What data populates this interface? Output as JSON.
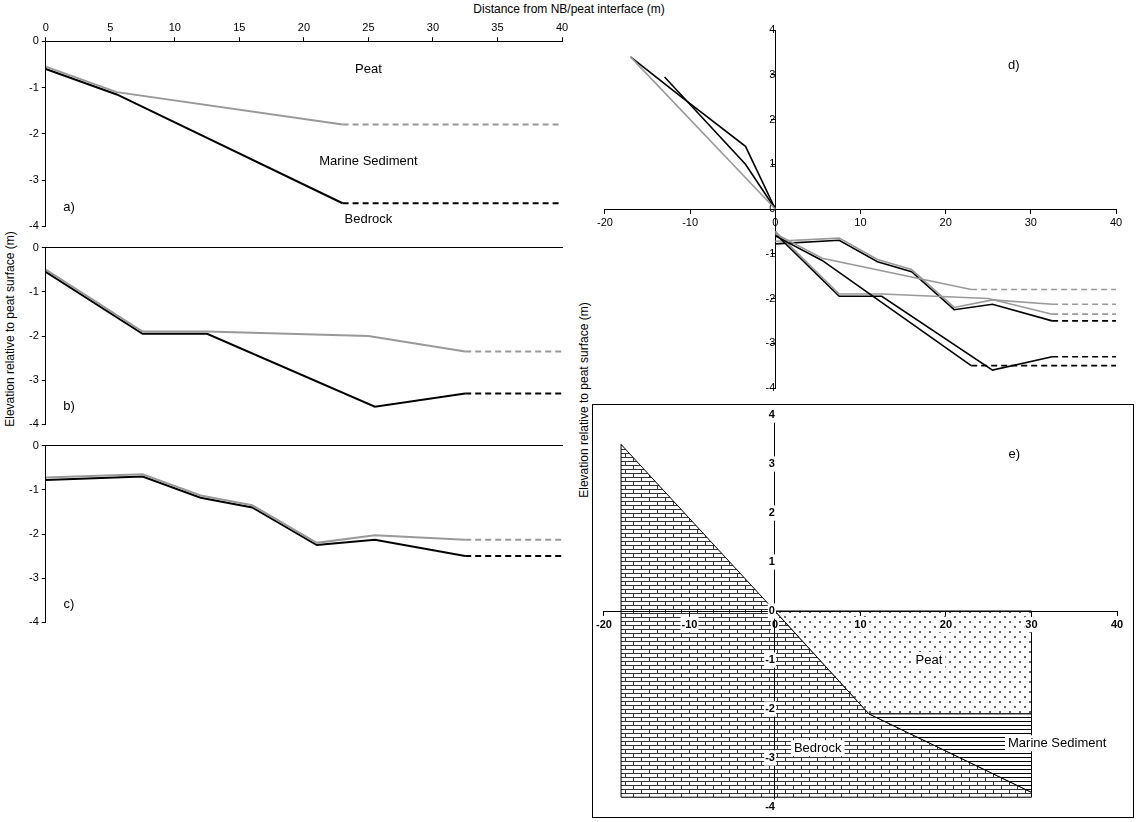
{
  "x_label": "Distance from NB/peat interface (m)",
  "y_label_left": "Elevation relative to peat surface (m)",
  "y_label_right": "Elevation relative to peat surface (m)",
  "chart_data": [
    {
      "type": "line",
      "xlim": [
        0,
        40
      ],
      "xticks": [
        0,
        5,
        10,
        15,
        20,
        25,
        30,
        35,
        40
      ],
      "ylim": [
        -4,
        0
      ],
      "yticks": [
        0,
        -1,
        -2,
        -3,
        -4
      ],
      "grid": false,
      "series": [
        {
          "color": "#999999",
          "x": [
            0,
            5.5,
            23
          ],
          "values": [
            -0.55,
            -1.1,
            -1.8
          ]
        },
        {
          "color": "#999999",
          "line_style": "dashed",
          "x": [
            23,
            40
          ],
          "values": [
            -1.8,
            -1.8
          ]
        },
        {
          "color": "#000000",
          "x": [
            0,
            5.5,
            23
          ],
          "values": [
            -0.6,
            -1.15,
            -3.5
          ]
        },
        {
          "color": "#000000",
          "line_style": "dashed",
          "x": [
            23,
            40
          ],
          "values": [
            -3.5,
            -3.5
          ]
        }
      ],
      "annotations": [
        {
          "text": "Peat",
          "x": 25,
          "y": -0.6
        },
        {
          "text": "Marine Sediment",
          "x": 25,
          "y": -2.6
        },
        {
          "text": "Bedrock",
          "x": 25,
          "y": -3.85
        },
        {
          "text": "a)",
          "x": 1.8,
          "y": -3.6
        }
      ]
    },
    {
      "type": "line",
      "xlim": [
        0,
        40
      ],
      "ylim": [
        -4,
        0
      ],
      "yticks": [
        0,
        -1,
        -2,
        -3,
        -4
      ],
      "grid": false,
      "tick_labels": "y",
      "series": [
        {
          "color": "#999999",
          "x": [
            0,
            7.5,
            12.5,
            25,
            32.5
          ],
          "values": [
            -0.5,
            -1.9,
            -1.9,
            -2.0,
            -2.35
          ]
        },
        {
          "color": "#999999",
          "line_style": "dashed",
          "x": [
            32.5,
            40
          ],
          "values": [
            -2.35,
            -2.35
          ]
        },
        {
          "color": "#000000",
          "x": [
            0,
            7.5,
            12.5,
            25.5,
            32.5
          ],
          "values": [
            -0.55,
            -1.95,
            -1.95,
            -3.6,
            -3.3
          ]
        },
        {
          "color": "#000000",
          "line_style": "dashed",
          "x": [
            32.5,
            40
          ],
          "values": [
            -3.3,
            -3.3
          ]
        }
      ],
      "annotations": [
        {
          "text": "b)",
          "x": 1.8,
          "y": -3.6
        }
      ]
    },
    {
      "type": "line",
      "xlim": [
        0,
        40
      ],
      "ylim": [
        -4,
        0
      ],
      "yticks": [
        0,
        -1,
        -2,
        -3,
        -4
      ],
      "grid": false,
      "tick_labels": "y",
      "series": [
        {
          "color": "#999999",
          "x": [
            0,
            7.5,
            12,
            16,
            21,
            25.5,
            32.5
          ],
          "values": [
            -0.72,
            -0.65,
            -1.13,
            -1.35,
            -2.2,
            -2.03,
            -2.13
          ]
        },
        {
          "color": "#999999",
          "line_style": "dashed",
          "x": [
            32.5,
            40
          ],
          "values": [
            -2.13,
            -2.13
          ]
        },
        {
          "color": "#000000",
          "x": [
            0,
            7.5,
            12,
            16,
            21,
            25.5,
            32.5
          ],
          "values": [
            -0.78,
            -0.7,
            -1.18,
            -1.4,
            -2.25,
            -2.13,
            -2.5
          ]
        },
        {
          "color": "#000000",
          "line_style": "dashed",
          "x": [
            32.5,
            40
          ],
          "values": [
            -2.5,
            -2.5
          ]
        }
      ],
      "annotations": [
        {
          "text": "c)",
          "x": 1.8,
          "y": -3.6
        }
      ]
    },
    {
      "type": "line",
      "xlim": [
        -20,
        40
      ],
      "xticks": [
        -20,
        -10,
        0,
        10,
        20,
        30,
        40
      ],
      "ylim": [
        -4,
        4
      ],
      "yticks": [
        4,
        3,
        2,
        1,
        0,
        -1,
        -2,
        -3,
        -4
      ],
      "grid": false,
      "series": [
        {
          "color": "#999999",
          "x": [
            -17,
            0
          ],
          "values": [
            3.4,
            0
          ]
        },
        {
          "color": "#000000",
          "x": [
            -17,
            -11,
            -3.5,
            0
          ],
          "values": [
            3.4,
            2.5,
            1.4,
            0
          ]
        },
        {
          "color": "#000000",
          "x": [
            -13,
            -3.5,
            0
          ],
          "values": [
            2.95,
            1.0,
            0
          ]
        },
        {
          "color": "#999999",
          "x": [
            0,
            5.5,
            23
          ],
          "values": [
            -0.55,
            -1.1,
            -1.8
          ]
        },
        {
          "color": "#999999",
          "line_style": "dashed",
          "x": [
            23,
            40
          ],
          "values": [
            -1.8,
            -1.8
          ]
        },
        {
          "color": "#000000",
          "x": [
            0,
            5.5,
            23
          ],
          "values": [
            -0.6,
            -1.15,
            -3.5
          ]
        },
        {
          "color": "#000000",
          "line_style": "dashed",
          "x": [
            23,
            40
          ],
          "values": [
            -3.5,
            -3.5
          ]
        },
        {
          "color": "#999999",
          "x": [
            0,
            7.5,
            12.5,
            25,
            32.5
          ],
          "values": [
            -0.5,
            -1.9,
            -1.9,
            -2.0,
            -2.35
          ]
        },
        {
          "color": "#999999",
          "line_style": "dashed",
          "x": [
            32.5,
            40
          ],
          "values": [
            -2.35,
            -2.35
          ]
        },
        {
          "color": "#000000",
          "x": [
            0,
            7.5,
            12.5,
            25.5,
            32.5
          ],
          "values": [
            -0.55,
            -1.95,
            -1.95,
            -3.6,
            -3.3
          ]
        },
        {
          "color": "#000000",
          "line_style": "dashed",
          "x": [
            32.5,
            40
          ],
          "values": [
            -3.3,
            -3.3
          ]
        },
        {
          "color": "#999999",
          "x": [
            0,
            7.5,
            12,
            16,
            21,
            25.5,
            32.5
          ],
          "values": [
            -0.72,
            -0.65,
            -1.13,
            -1.35,
            -2.2,
            -2.03,
            -2.13
          ]
        },
        {
          "color": "#999999",
          "line_style": "dashed",
          "x": [
            32.5,
            40
          ],
          "values": [
            -2.13,
            -2.13
          ]
        },
        {
          "color": "#000000",
          "x": [
            0,
            7.5,
            12,
            16,
            21,
            25.5,
            32.5
          ],
          "values": [
            -0.78,
            -0.7,
            -1.18,
            -1.4,
            -2.25,
            -2.13,
            -2.5
          ]
        },
        {
          "color": "#000000",
          "line_style": "dashed",
          "x": [
            32.5,
            40
          ],
          "values": [
            -2.5,
            -2.5
          ]
        }
      ],
      "annotations": [
        {
          "text": "d)",
          "x": 28,
          "y": 3.2
        }
      ]
    },
    {
      "type": "area",
      "xlim": [
        -20,
        40
      ],
      "xticks": [
        -20,
        -10,
        0,
        10,
        20,
        30,
        40
      ],
      "ylim": [
        -4,
        4
      ],
      "yticks": [
        4,
        3,
        2,
        1,
        0,
        -1,
        -2,
        -3,
        -4
      ],
      "grid": false,
      "regions": [
        {
          "label": "Bedrock",
          "points": [
            [
              -18,
              3.4
            ],
            [
              0,
              0
            ],
            [
              11,
              -2.1
            ],
            [
              30,
              -3.7
            ],
            [
              30,
              -3.8
            ],
            [
              -18,
              -3.8
            ]
          ]
        },
        {
          "label": "Peat",
          "points": [
            [
              0,
              0
            ],
            [
              30,
              0
            ],
            [
              30,
              -2.1
            ],
            [
              11,
              -2.1
            ]
          ]
        },
        {
          "label": "Marine Sediment",
          "points": [
            [
              11,
              -2.1
            ],
            [
              30,
              -2.1
            ],
            [
              30,
              -3.7
            ]
          ]
        }
      ],
      "annotations": [
        {
          "text": "Peat",
          "x": 18,
          "y": -1.0
        },
        {
          "text": "Marine Sediment",
          "x": 33,
          "y": -2.7
        },
        {
          "text": "Bedrock",
          "x": 5,
          "y": -2.8
        },
        {
          "text": "e)",
          "x": 28,
          "y": 3.2
        }
      ]
    }
  ]
}
